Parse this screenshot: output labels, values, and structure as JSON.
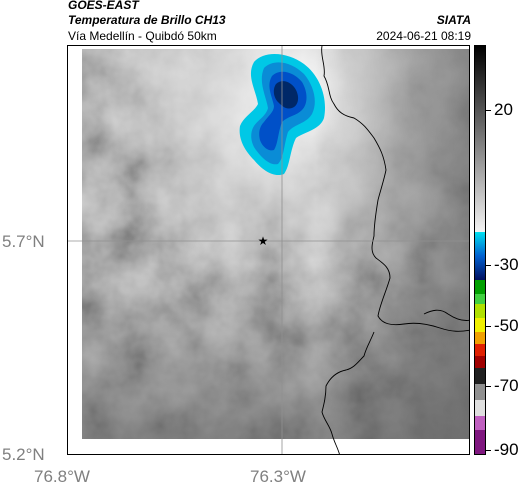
{
  "header": {
    "product": "GOES-EAST",
    "title": "Temperatura de Brillo CH13",
    "location": "Vía Medellín - Quibdó 50km",
    "agency": "SIATA",
    "datetime": "2024-06-21 08:19"
  },
  "map": {
    "lat_ticks": [
      {
        "value": 5.7,
        "label": "5.7°N"
      },
      {
        "value": 5.2,
        "label": "5.2°N"
      }
    ],
    "lon_ticks": [
      {
        "value": -76.8,
        "label": "76.8°W"
      },
      {
        "value": -76.3,
        "label": "76.3°W"
      }
    ],
    "marker": {
      "symbol": "star",
      "lat": 5.7,
      "lon": -76.32
    }
  },
  "colorbar": {
    "ticks": [
      {
        "value": 20,
        "label": "20"
      },
      {
        "value": -30,
        "label": "-30"
      },
      {
        "value": -50,
        "label": "-50"
      },
      {
        "value": -70,
        "label": "-70"
      },
      {
        "value": -90,
        "label": "-90"
      }
    ],
    "colors": {
      "gray_dark": "#4a4a4a",
      "gray_light": "#f2f2f2",
      "cyan": "#00c8e6",
      "blue": "#0050c8",
      "navy": "#002868"
    }
  }
}
